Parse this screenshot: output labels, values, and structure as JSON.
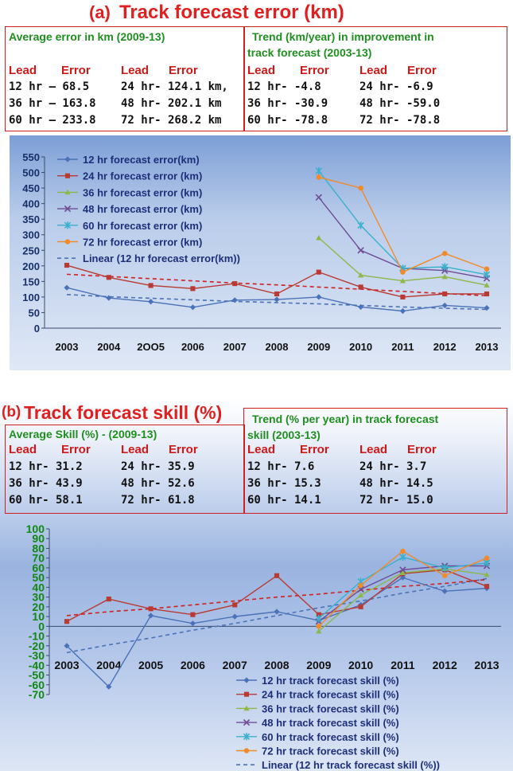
{
  "panel_a": {
    "label": "(a)",
    "title": "Track forecast error (km)",
    "avg_box": {
      "title": "Average error in km (2009-13)",
      "headers": [
        "Lead",
        "Error",
        "Lead",
        "Error"
      ],
      "rows": [
        "12 hr – 68.5",
        "24 hr-  124.1 km,",
        "36 hr – 163.8",
        "48 hr-  202.1 km",
        "60 hr – 233.8",
        "72 hr-  268.2 km"
      ]
    },
    "trend_box": {
      "title1": "Trend (km/year) in improvement in",
      "title2": "track forecast (2003-13)",
      "headers": [
        "Lead",
        "Error",
        "Lead",
        "Error"
      ],
      "rows": [
        "12 hr-  -4.8",
        "24 hr-  -6.9",
        "36 hr-  -30.9",
        "48 hr-  -59.0",
        "60 hr-  -78.8",
        "72 hr-  -78.8"
      ]
    }
  },
  "panel_b": {
    "label": "(b)",
    "title": "Track forecast skill (%)",
    "avg_box": {
      "title": "Average Skill (%)  - (2009-13)",
      "headers": [
        "Lead",
        "Error",
        "Lead",
        "Error"
      ],
      "rows": [
        "12 hr-   31.2",
        "24 hr-  35.9",
        "36 hr-   43.9",
        "48 hr-  52.6",
        "60 hr-   58.1",
        "72 hr-  61.8"
      ]
    },
    "trend_box": {
      "title1": "Trend (% per year) in track forecast",
      "title2": "skill (2003-13)",
      "headers": [
        "Lead",
        "Error",
        "Lead",
        "Error"
      ],
      "rows": [
        "12 hr-  7.6",
        "24 hr-  3.7",
        "36 hr-  15.3",
        "48 hr-  14.5",
        "60 hr-   14.1",
        "72 hr-  15.0"
      ]
    }
  },
  "colors": {
    "s12": "#4a72b8",
    "s24": "#b83a32",
    "s36": "#8cb84a",
    "s48": "#6f4c96",
    "s60": "#3ab0cc",
    "s72": "#f08a2a",
    "trend12": "#4a72b8",
    "trend24": "#d02020"
  },
  "chart_data": [
    {
      "type": "line",
      "x": [
        2003,
        2004,
        2005,
        2006,
        2007,
        2008,
        2009,
        2010,
        2011,
        2012,
        2013
      ],
      "x_tick_labels": [
        "2003",
        "2004",
        "2OO5",
        "2006",
        "2007",
        "2008",
        "2009",
        "2010",
        "2011",
        "2012",
        "2013"
      ],
      "ylim": [
        0,
        550
      ],
      "y_ticks": [
        0,
        50,
        100,
        150,
        200,
        250,
        300,
        350,
        400,
        450,
        500,
        550
      ],
      "grid": false,
      "legend_position": "top-left",
      "series": [
        {
          "name": "12 hr forecast error(km)",
          "values": [
            130,
            97,
            85,
            67,
            90,
            92,
            100,
            68,
            55,
            73,
            65
          ]
        },
        {
          "name": "24 hr forecast error (km)",
          "values": [
            202,
            163,
            137,
            127,
            143,
            110,
            180,
            132,
            100,
            110,
            110
          ]
        },
        {
          "name": "36 hr forecast error (km)",
          "values": [
            null,
            null,
            null,
            null,
            null,
            null,
            290,
            170,
            152,
            165,
            138
          ]
        },
        {
          "name": "48 hr forecast error (km)",
          "values": [
            null,
            null,
            null,
            null,
            null,
            null,
            420,
            250,
            192,
            185,
            160
          ]
        },
        {
          "name": "60 hr forecast error (km)",
          "values": [
            null,
            null,
            null,
            null,
            null,
            null,
            505,
            330,
            192,
            197,
            172
          ]
        },
        {
          "name": "72 hr forecast error (km)",
          "values": [
            null,
            null,
            null,
            null,
            null,
            null,
            485,
            450,
            180,
            240,
            190
          ]
        }
      ],
      "trend_lines": [
        {
          "name": "Linear (12 hr forecast error(km))",
          "values": [
            108,
            101,
            96,
            91,
            86,
            82,
            78,
            73,
            68,
            64,
            60
          ]
        },
        {
          "name": "",
          "values": [
            173,
            166,
            159,
            152,
            145,
            139,
            132,
            125,
            118,
            111,
            104
          ]
        }
      ]
    },
    {
      "type": "line",
      "x": [
        2003,
        2004,
        2005,
        2006,
        2007,
        2008,
        2009,
        2010,
        2011,
        2012,
        2013
      ],
      "x_tick_labels": [
        "2003",
        "2004",
        "2005",
        "2006",
        "2007",
        "2008",
        "2009",
        "2010",
        "2011",
        "2012",
        "2013"
      ],
      "ylim": [
        -70,
        100
      ],
      "y_ticks": [
        -70,
        -60,
        -50,
        -40,
        -30,
        -20,
        -10,
        0,
        10,
        20,
        30,
        40,
        50,
        60,
        70,
        80,
        90,
        100
      ],
      "grid": false,
      "legend_position": "bottom-right",
      "series": [
        {
          "name": "12 hr track forecast skill (%)",
          "values": [
            -20,
            -62,
            11,
            3,
            10,
            15,
            6,
            22,
            50,
            36,
            39
          ]
        },
        {
          "name": "24 hr track forecast skill (%)",
          "values": [
            5,
            28,
            18,
            12,
            22,
            52,
            12,
            20,
            54,
            58,
            41
          ]
        },
        {
          "name": "36 hr track forecast skill (%)",
          "values": [
            null,
            null,
            null,
            null,
            null,
            null,
            -5,
            32,
            55,
            59,
            53
          ]
        },
        {
          "name": "48 hr track forecast skill (%)",
          "values": [
            null,
            null,
            null,
            null,
            null,
            null,
            5,
            38,
            58,
            62,
            62
          ]
        },
        {
          "name": "60 hr track forecast skill (%)",
          "values": [
            null,
            null,
            null,
            null,
            null,
            null,
            8,
            46,
            71,
            60,
            65
          ]
        },
        {
          "name": "72 hr track forecast skill (%)",
          "values": [
            null,
            null,
            null,
            null,
            null,
            null,
            0,
            42,
            77,
            52,
            70
          ]
        }
      ],
      "trend_lines": [
        {
          "name": "Linear (12 hr track forecast skill (%))",
          "values": [
            -27,
            -19,
            -12,
            -4,
            3,
            11,
            19,
            26,
            34,
            41,
            49
          ]
        },
        {
          "name": "",
          "values": [
            11,
            15,
            18,
            22,
            26,
            30,
            33,
            37,
            41,
            44,
            48
          ]
        }
      ]
    }
  ]
}
